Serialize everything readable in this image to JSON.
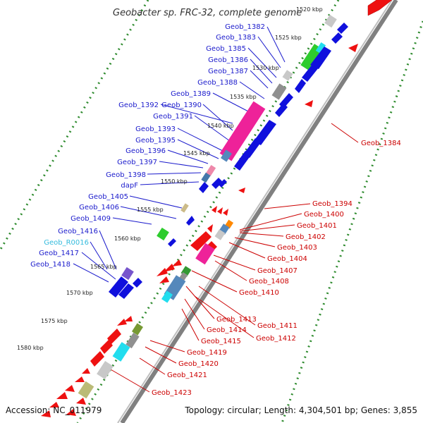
{
  "title": "Geobacter sp. FRC-32, complete genome",
  "footer": {
    "accession": "Accession: NC_011979",
    "summary": "Topology: circular; Length: 4,304,501 bp; Genes: 3,855"
  },
  "colors": {
    "forward_label": "#1a1acc",
    "reverse_label": "#cc0000",
    "rna_label": "#33bbdd",
    "backbone": "#808080",
    "dots": "#2e8b2e"
  },
  "kbp_ticks": [
    "1520 kbp",
    "1525 kbp",
    "1530 kbp",
    "1535 kbp",
    "1540 kbp",
    "1545 kbp",
    "1550 kbp",
    "1555 kbp",
    "1560 kbp",
    "1565 kbp",
    "1570 kbp",
    "1575 kbp",
    "1580 kbp"
  ],
  "forward_labels": [
    "Geob_1382",
    "Geob_1383",
    "Geob_1385",
    "Geob_1386",
    "Geob_1387",
    "Geob_1388",
    "Geob_1389",
    "Geob_1392",
    "Geob_1390",
    "Geob_1391",
    "Geob_1393",
    "Geob_1395",
    "Geob_1396",
    "Geob_1397",
    "Geob_1398",
    "dapF",
    "Geob_1405",
    "Geob_1406",
    "Geob_1409",
    "Geob_1416",
    "Geob_R0016",
    "Geob_1417",
    "Geob_1418"
  ],
  "reverse_labels": [
    "Geob_1384",
    "Geob_1394",
    "Geob_1400",
    "Geob_1401",
    "Geob_1402",
    "Geob_1403",
    "Geob_1404",
    "Geob_1407",
    "Geob_1408",
    "Geob_1410",
    "Geob_1411",
    "Geob_1413",
    "Geob_1412",
    "Geob_1414",
    "Geob_1415",
    "Geob_1419",
    "Geob_1420",
    "Geob_1421",
    "Geob_1423"
  ]
}
